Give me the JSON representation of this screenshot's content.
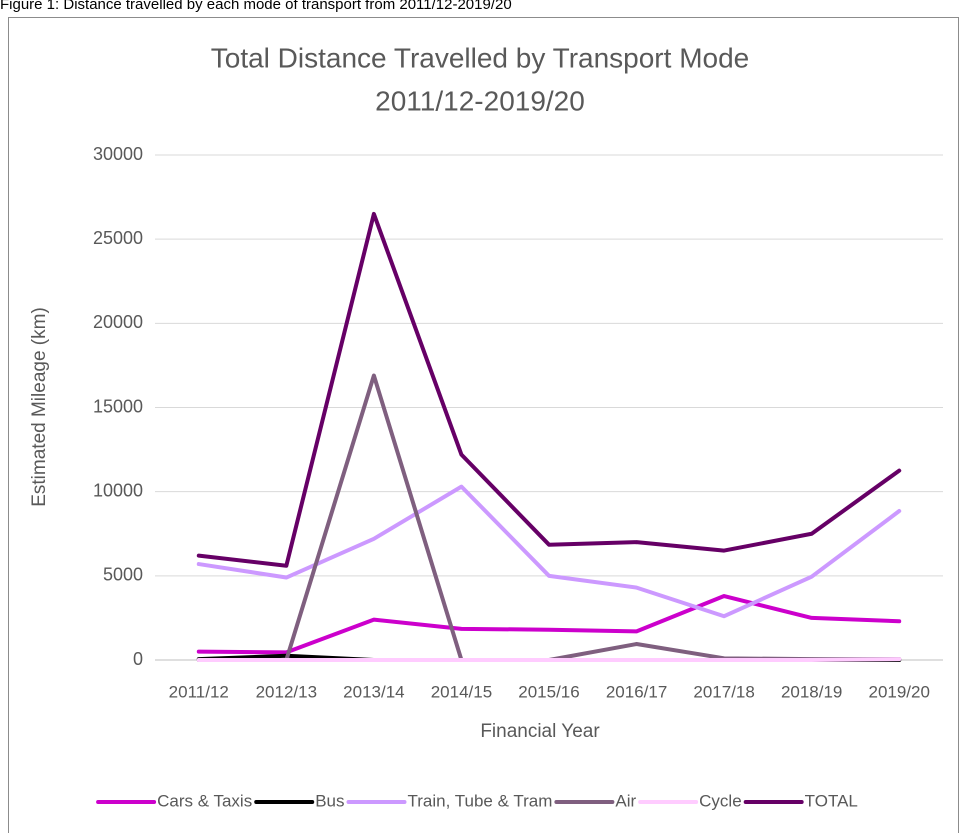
{
  "caption": "Figure 1: Distance travelled by each mode of transport from 2011/12-2019/20",
  "chart_data": {
    "type": "line",
    "title": [
      "Total Distance Travelled by Transport Mode",
      "2011/12-2019/20"
    ],
    "x_label": "Financial Year",
    "y_label": "Estimated Mileage (km)",
    "categories": [
      "2011/12",
      "2012/13",
      "2013/14",
      "2014/15",
      "2015/16",
      "2016/17",
      "2017/18",
      "2018/19",
      "2019/20"
    ],
    "series": [
      {
        "name": "Cars & Taxis",
        "color": "#cc00cc",
        "values": [
          500,
          450,
          2400,
          1850,
          1800,
          1700,
          3800,
          2500,
          2300
        ]
      },
      {
        "name": "Bus",
        "color": "#000000",
        "values": [
          50,
          250,
          0,
          0,
          0,
          0,
          0,
          0,
          0
        ]
      },
      {
        "name": "Train, Tube & Tram",
        "color": "#cc99ff",
        "values": [
          5700,
          4900,
          7200,
          10300,
          5000,
          4300,
          2600,
          4950,
          8850
        ]
      },
      {
        "name": "Air",
        "color": "#7f5f7f",
        "values": [
          0,
          0,
          16900,
          0,
          0,
          950,
          100,
          50,
          50
        ]
      },
      {
        "name": "Cycle",
        "color": "#ffccff",
        "values": [
          0,
          0,
          0,
          0,
          0,
          0,
          0,
          0,
          50
        ]
      },
      {
        "name": "TOTAL",
        "color": "#660066",
        "values": [
          6200,
          5600,
          26500,
          12200,
          6850,
          7000,
          6500,
          7500,
          11250
        ]
      }
    ],
    "ylim": [
      0,
      30000
    ],
    "yticks": [
      0,
      5000,
      10000,
      15000,
      20000,
      25000,
      30000
    ],
    "grid": true,
    "legend": "bottom"
  }
}
